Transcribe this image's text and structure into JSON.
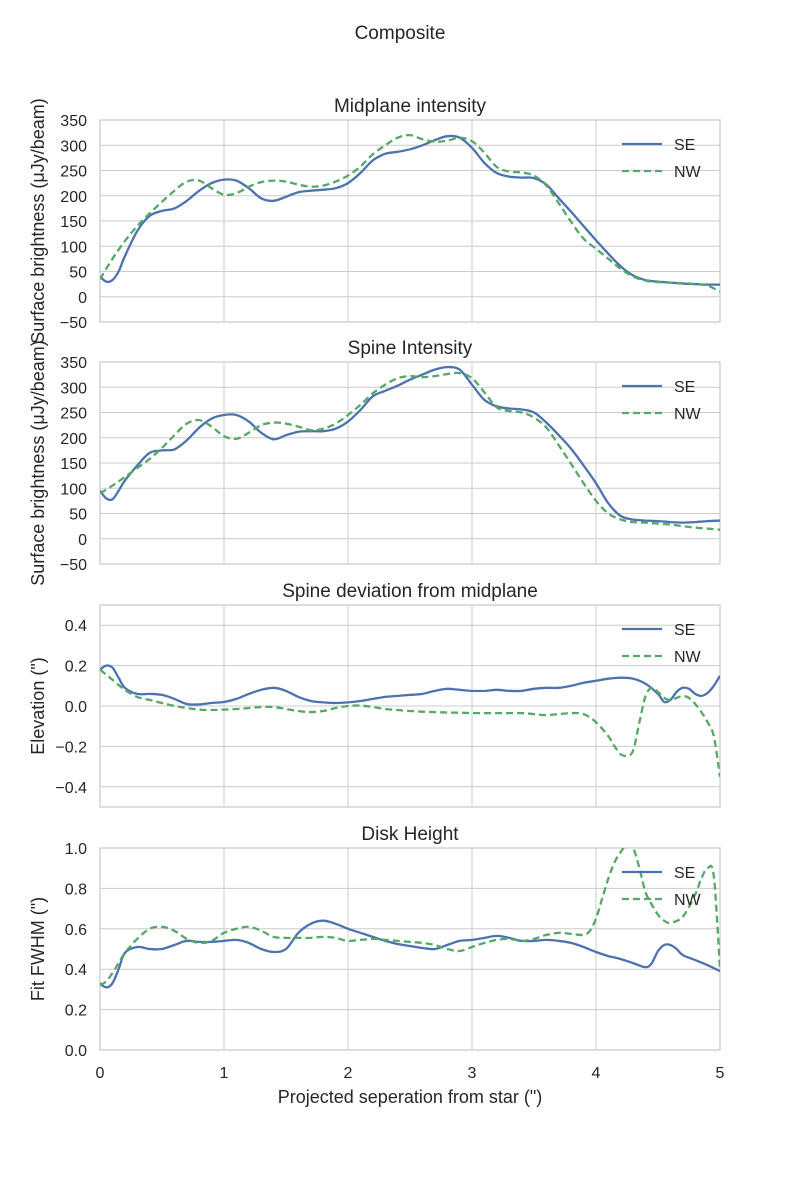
{
  "figure": {
    "title": "Composite",
    "xlabel": "Projected seperation from star (\")"
  },
  "chart_data": [
    {
      "type": "line",
      "title": "Midplane intensity",
      "ylabel": "Surface brightness (μJy/beam)",
      "xlim": [
        0,
        5
      ],
      "ylim": [
        -50,
        350
      ],
      "xticks": [
        0,
        1,
        2,
        3,
        4,
        5
      ],
      "xtick_labels": [
        "0",
        "1",
        "2",
        "3",
        "4",
        "5"
      ],
      "yticks": [
        -50,
        0,
        50,
        100,
        150,
        200,
        250,
        300,
        350
      ],
      "ytick_labels": [
        "−50",
        "0",
        "50",
        "100",
        "150",
        "200",
        "250",
        "300",
        "350"
      ],
      "show_xtick_labels": false,
      "grid": true,
      "legend": "top-right",
      "series": [
        {
          "name": "SE",
          "color": "#4c72b0",
          "style": "solid",
          "x": [
            0,
            0.05,
            0.1,
            0.15,
            0.2,
            0.3,
            0.4,
            0.5,
            0.6,
            0.7,
            0.8,
            0.9,
            1.0,
            1.1,
            1.2,
            1.3,
            1.4,
            1.5,
            1.6,
            1.7,
            1.8,
            1.9,
            2.0,
            2.1,
            2.2,
            2.3,
            2.4,
            2.5,
            2.6,
            2.7,
            2.8,
            2.9,
            3.0,
            3.1,
            3.2,
            3.3,
            3.4,
            3.5,
            3.6,
            3.7,
            3.8,
            3.9,
            4.0,
            4.1,
            4.2,
            4.3,
            4.4,
            4.5,
            4.6,
            4.7,
            4.8,
            4.9,
            5.0
          ],
          "y": [
            40,
            30,
            33,
            50,
            80,
            130,
            160,
            170,
            175,
            190,
            210,
            225,
            232,
            230,
            215,
            195,
            190,
            198,
            207,
            210,
            212,
            215,
            225,
            245,
            270,
            283,
            287,
            292,
            300,
            310,
            318,
            315,
            295,
            265,
            245,
            238,
            236,
            235,
            222,
            195,
            168,
            140,
            112,
            85,
            60,
            42,
            33,
            30,
            28,
            26,
            25,
            24,
            24
          ]
        },
        {
          "name": "NW",
          "color": "#55a868",
          "style": "dashed",
          "x": [
            0,
            0.1,
            0.2,
            0.3,
            0.4,
            0.5,
            0.6,
            0.7,
            0.8,
            0.9,
            1.0,
            1.1,
            1.2,
            1.3,
            1.4,
            1.5,
            1.6,
            1.7,
            1.8,
            1.9,
            2.0,
            2.1,
            2.2,
            2.3,
            2.4,
            2.5,
            2.6,
            2.7,
            2.8,
            2.9,
            3.0,
            3.1,
            3.2,
            3.3,
            3.4,
            3.5,
            3.6,
            3.7,
            3.8,
            3.9,
            4.0,
            4.1,
            4.2,
            4.3,
            4.4,
            4.5,
            4.6,
            4.7,
            4.8,
            4.9,
            5.0
          ],
          "y": [
            35,
            75,
            110,
            140,
            165,
            188,
            210,
            228,
            230,
            215,
            202,
            205,
            218,
            227,
            230,
            228,
            222,
            218,
            220,
            228,
            240,
            258,
            282,
            300,
            315,
            320,
            312,
            307,
            309,
            315,
            308,
            285,
            257,
            248,
            246,
            240,
            220,
            185,
            148,
            115,
            95,
            75,
            55,
            40,
            32,
            29,
            28,
            27,
            25,
            22,
            10
          ]
        }
      ]
    },
    {
      "type": "line",
      "title": "Spine Intensity",
      "ylabel": "Surface brightness (μJy/beam)",
      "xlim": [
        0,
        5
      ],
      "ylim": [
        -50,
        350
      ],
      "xticks": [
        0,
        1,
        2,
        3,
        4,
        5
      ],
      "xtick_labels": [
        "0",
        "1",
        "2",
        "3",
        "4",
        "5"
      ],
      "yticks": [
        -50,
        0,
        50,
        100,
        150,
        200,
        250,
        300,
        350
      ],
      "ytick_labels": [
        "−50",
        "0",
        "50",
        "100",
        "150",
        "200",
        "250",
        "300",
        "350"
      ],
      "show_xtick_labels": false,
      "grid": true,
      "legend": "top-right",
      "series": [
        {
          "name": "SE",
          "color": "#4c72b0",
          "style": "solid",
          "x": [
            0,
            0.05,
            0.1,
            0.15,
            0.2,
            0.3,
            0.4,
            0.5,
            0.6,
            0.7,
            0.8,
            0.9,
            1.0,
            1.1,
            1.2,
            1.3,
            1.4,
            1.5,
            1.6,
            1.7,
            1.8,
            1.9,
            2.0,
            2.1,
            2.2,
            2.3,
            2.4,
            2.5,
            2.6,
            2.7,
            2.8,
            2.9,
            3.0,
            3.1,
            3.2,
            3.3,
            3.4,
            3.5,
            3.6,
            3.7,
            3.8,
            3.9,
            4.0,
            4.1,
            4.2,
            4.3,
            4.4,
            4.5,
            4.6,
            4.7,
            4.8,
            4.9,
            5.0
          ],
          "y": [
            95,
            80,
            78,
            95,
            115,
            145,
            170,
            175,
            177,
            195,
            220,
            238,
            245,
            245,
            232,
            210,
            197,
            205,
            212,
            213,
            213,
            218,
            232,
            255,
            282,
            293,
            303,
            315,
            325,
            335,
            340,
            335,
            305,
            275,
            262,
            258,
            256,
            250,
            230,
            205,
            178,
            145,
            110,
            70,
            45,
            38,
            36,
            35,
            33,
            32,
            33,
            35,
            36
          ]
        },
        {
          "name": "NW",
          "color": "#55a868",
          "style": "dashed",
          "x": [
            0,
            0.1,
            0.2,
            0.3,
            0.4,
            0.5,
            0.6,
            0.7,
            0.8,
            0.9,
            1.0,
            1.1,
            1.2,
            1.3,
            1.4,
            1.5,
            1.6,
            1.7,
            1.8,
            1.9,
            2.0,
            2.1,
            2.2,
            2.3,
            2.4,
            2.5,
            2.6,
            2.7,
            2.8,
            2.9,
            3.0,
            3.1,
            3.2,
            3.3,
            3.4,
            3.5,
            3.6,
            3.7,
            3.8,
            3.9,
            4.0,
            4.1,
            4.2,
            4.3,
            4.4,
            4.5,
            4.6,
            4.7,
            4.8,
            4.9,
            5.0
          ],
          "y": [
            90,
            105,
            122,
            140,
            158,
            180,
            205,
            228,
            235,
            222,
            203,
            198,
            210,
            225,
            230,
            228,
            222,
            215,
            218,
            228,
            245,
            265,
            288,
            305,
            318,
            322,
            320,
            322,
            326,
            328,
            318,
            290,
            260,
            253,
            250,
            240,
            220,
            185,
            148,
            110,
            75,
            50,
            38,
            33,
            32,
            30,
            28,
            25,
            22,
            20,
            18
          ]
        }
      ]
    },
    {
      "type": "line",
      "title": "Spine deviation from midplane",
      "ylabel": "Elevation (\")",
      "xlim": [
        0,
        5
      ],
      "ylim": [
        -0.5,
        0.5
      ],
      "xticks": [
        0,
        1,
        2,
        3,
        4,
        5
      ],
      "xtick_labels": [
        "0",
        "1",
        "2",
        "3",
        "4",
        "5"
      ],
      "yticks": [
        -0.4,
        -0.2,
        0.0,
        0.2,
        0.4
      ],
      "ytick_labels": [
        "−0.4",
        "−0.2",
        "0.0",
        "0.2",
        "0.4"
      ],
      "show_xtick_labels": false,
      "grid": true,
      "legend": "top-right",
      "series": [
        {
          "name": "SE",
          "color": "#4c72b0",
          "style": "solid",
          "x": [
            0,
            0.05,
            0.1,
            0.15,
            0.2,
            0.3,
            0.4,
            0.5,
            0.6,
            0.7,
            0.8,
            0.9,
            1.0,
            1.1,
            1.2,
            1.3,
            1.4,
            1.5,
            1.6,
            1.7,
            1.8,
            1.9,
            2.0,
            2.1,
            2.2,
            2.3,
            2.4,
            2.5,
            2.6,
            2.7,
            2.8,
            2.9,
            3.0,
            3.1,
            3.2,
            3.3,
            3.4,
            3.5,
            3.6,
            3.7,
            3.8,
            3.9,
            4.0,
            4.1,
            4.2,
            4.3,
            4.4,
            4.5,
            4.55,
            4.6,
            4.65,
            4.7,
            4.75,
            4.8,
            4.85,
            4.9,
            4.95,
            5.0
          ],
          "y": [
            0.18,
            0.2,
            0.19,
            0.14,
            0.09,
            0.06,
            0.06,
            0.055,
            0.035,
            0.01,
            0.008,
            0.015,
            0.02,
            0.035,
            0.06,
            0.08,
            0.09,
            0.075,
            0.045,
            0.025,
            0.018,
            0.015,
            0.018,
            0.025,
            0.035,
            0.045,
            0.05,
            0.055,
            0.06,
            0.075,
            0.085,
            0.08,
            0.075,
            0.075,
            0.08,
            0.075,
            0.075,
            0.085,
            0.09,
            0.09,
            0.1,
            0.115,
            0.125,
            0.135,
            0.14,
            0.135,
            0.11,
            0.06,
            0.02,
            0.03,
            0.07,
            0.09,
            0.085,
            0.06,
            0.05,
            0.065,
            0.1,
            0.15
          ]
        },
        {
          "name": "NW",
          "color": "#55a868",
          "style": "dashed",
          "x": [
            0,
            0.1,
            0.2,
            0.3,
            0.4,
            0.5,
            0.6,
            0.7,
            0.8,
            0.9,
            1.0,
            1.1,
            1.2,
            1.3,
            1.4,
            1.5,
            1.6,
            1.7,
            1.8,
            1.9,
            2.0,
            2.1,
            2.2,
            2.3,
            2.4,
            2.5,
            2.6,
            2.7,
            2.8,
            2.9,
            3.0,
            3.1,
            3.2,
            3.3,
            3.4,
            3.5,
            3.6,
            3.7,
            3.8,
            3.9,
            4.0,
            4.1,
            4.15,
            4.2,
            4.25,
            4.3,
            4.35,
            4.4,
            4.45,
            4.5,
            4.55,
            4.6,
            4.65,
            4.7,
            4.75,
            4.8,
            4.85,
            4.9,
            4.95,
            5.0
          ],
          "y": [
            0.18,
            0.13,
            0.08,
            0.045,
            0.03,
            0.015,
            0.0,
            -0.01,
            -0.018,
            -0.02,
            -0.018,
            -0.015,
            -0.01,
            -0.005,
            -0.005,
            -0.015,
            -0.025,
            -0.03,
            -0.025,
            -0.01,
            0.0,
            0.002,
            -0.005,
            -0.015,
            -0.02,
            -0.025,
            -0.028,
            -0.03,
            -0.032,
            -0.033,
            -0.035,
            -0.035,
            -0.035,
            -0.035,
            -0.035,
            -0.04,
            -0.045,
            -0.04,
            -0.035,
            -0.04,
            -0.08,
            -0.15,
            -0.2,
            -0.24,
            -0.245,
            -0.22,
            -0.08,
            0.05,
            0.09,
            0.07,
            0.04,
            0.03,
            0.04,
            0.05,
            0.04,
            0.01,
            -0.03,
            -0.08,
            -0.15,
            -0.35
          ]
        }
      ]
    },
    {
      "type": "line",
      "title": "Disk Height",
      "ylabel": "Fit FWHM (\")",
      "xlim": [
        0,
        5
      ],
      "ylim": [
        0,
        1
      ],
      "xticks": [
        0,
        1,
        2,
        3,
        4,
        5
      ],
      "xtick_labels": [
        "0",
        "1",
        "2",
        "3",
        "4",
        "5"
      ],
      "yticks": [
        0.0,
        0.2,
        0.4,
        0.6,
        0.8,
        1.0
      ],
      "ytick_labels": [
        "0.0",
        "0.2",
        "0.4",
        "0.6",
        "0.8",
        "1.0"
      ],
      "show_xtick_labels": true,
      "grid": true,
      "legend": "top-right",
      "series": [
        {
          "name": "SE",
          "color": "#4c72b0",
          "style": "solid",
          "x": [
            0,
            0.05,
            0.1,
            0.15,
            0.2,
            0.3,
            0.4,
            0.5,
            0.6,
            0.7,
            0.8,
            0.9,
            1.0,
            1.1,
            1.2,
            1.3,
            1.4,
            1.5,
            1.6,
            1.7,
            1.8,
            1.9,
            2.0,
            2.1,
            2.2,
            2.3,
            2.4,
            2.5,
            2.6,
            2.7,
            2.8,
            2.9,
            3.0,
            3.1,
            3.2,
            3.3,
            3.4,
            3.5,
            3.6,
            3.7,
            3.8,
            3.9,
            4.0,
            4.1,
            4.2,
            4.3,
            4.4,
            4.45,
            4.5,
            4.55,
            4.6,
            4.65,
            4.7,
            4.8,
            4.9,
            5.0
          ],
          "y": [
            0.33,
            0.31,
            0.33,
            0.4,
            0.48,
            0.51,
            0.5,
            0.5,
            0.52,
            0.54,
            0.535,
            0.535,
            0.54,
            0.545,
            0.53,
            0.5,
            0.485,
            0.5,
            0.58,
            0.625,
            0.64,
            0.625,
            0.6,
            0.58,
            0.56,
            0.54,
            0.525,
            0.515,
            0.505,
            0.5,
            0.52,
            0.54,
            0.545,
            0.555,
            0.565,
            0.555,
            0.54,
            0.54,
            0.545,
            0.54,
            0.53,
            0.51,
            0.485,
            0.465,
            0.45,
            0.43,
            0.41,
            0.43,
            0.49,
            0.52,
            0.52,
            0.5,
            0.47,
            0.445,
            0.42,
            0.39
          ]
        },
        {
          "name": "NW",
          "color": "#55a868",
          "style": "dashed",
          "x": [
            0,
            0.05,
            0.1,
            0.15,
            0.2,
            0.3,
            0.4,
            0.5,
            0.6,
            0.7,
            0.8,
            0.9,
            1.0,
            1.1,
            1.2,
            1.3,
            1.4,
            1.5,
            1.6,
            1.7,
            1.8,
            1.9,
            2.0,
            2.1,
            2.2,
            2.3,
            2.4,
            2.5,
            2.6,
            2.7,
            2.8,
            2.9,
            3.0,
            3.1,
            3.2,
            3.3,
            3.4,
            3.5,
            3.6,
            3.7,
            3.8,
            3.9,
            3.95,
            4.0,
            4.05,
            4.1,
            4.15,
            4.2,
            4.25,
            4.3,
            4.35,
            4.4,
            4.45,
            4.5,
            4.55,
            4.6,
            4.7,
            4.8,
            4.85,
            4.9,
            4.95,
            5.0
          ],
          "y": [
            0.32,
            0.34,
            0.38,
            0.43,
            0.48,
            0.55,
            0.6,
            0.61,
            0.59,
            0.55,
            0.53,
            0.54,
            0.58,
            0.6,
            0.61,
            0.59,
            0.56,
            0.555,
            0.555,
            0.555,
            0.56,
            0.555,
            0.54,
            0.545,
            0.55,
            0.545,
            0.54,
            0.535,
            0.53,
            0.52,
            0.5,
            0.49,
            0.51,
            0.53,
            0.545,
            0.55,
            0.54,
            0.55,
            0.57,
            0.58,
            0.575,
            0.57,
            0.59,
            0.65,
            0.75,
            0.85,
            0.93,
            0.98,
            1.02,
            1.0,
            0.9,
            0.78,
            0.72,
            0.67,
            0.64,
            0.63,
            0.66,
            0.77,
            0.85,
            0.9,
            0.86,
            0.4
          ]
        }
      ]
    }
  ]
}
